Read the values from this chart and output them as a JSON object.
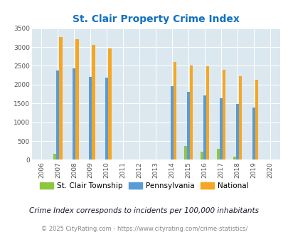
{
  "title": "St. Clair Property Crime Index",
  "years": [
    2006,
    2007,
    2008,
    2009,
    2010,
    2011,
    2012,
    2013,
    2014,
    2015,
    2016,
    2017,
    2018,
    2019,
    2020
  ],
  "stclair": [
    0,
    150,
    0,
    0,
    0,
    0,
    0,
    0,
    0,
    360,
    220,
    290,
    80,
    0,
    0
  ],
  "pennsylvania": [
    0,
    2380,
    2430,
    2200,
    2180,
    0,
    0,
    0,
    1950,
    1800,
    1720,
    1640,
    1490,
    1390,
    0
  ],
  "national": [
    0,
    3260,
    3200,
    3050,
    2960,
    0,
    0,
    0,
    2600,
    2500,
    2480,
    2390,
    2220,
    2120,
    0
  ],
  "stclair_color": "#8dc63f",
  "pennsylvania_color": "#5b9bd5",
  "national_color": "#f5a623",
  "bg_color": "#dce8ef",
  "title_color": "#1070c0",
  "ylabel_max": 3500,
  "yticks": [
    0,
    500,
    1000,
    1500,
    2000,
    2500,
    3000,
    3500
  ],
  "footnote1": "Crime Index corresponds to incidents per 100,000 inhabitants",
  "footnote2": "© 2025 CityRating.com - https://www.cityrating.com/crime-statistics/",
  "bar_width": 0.18
}
